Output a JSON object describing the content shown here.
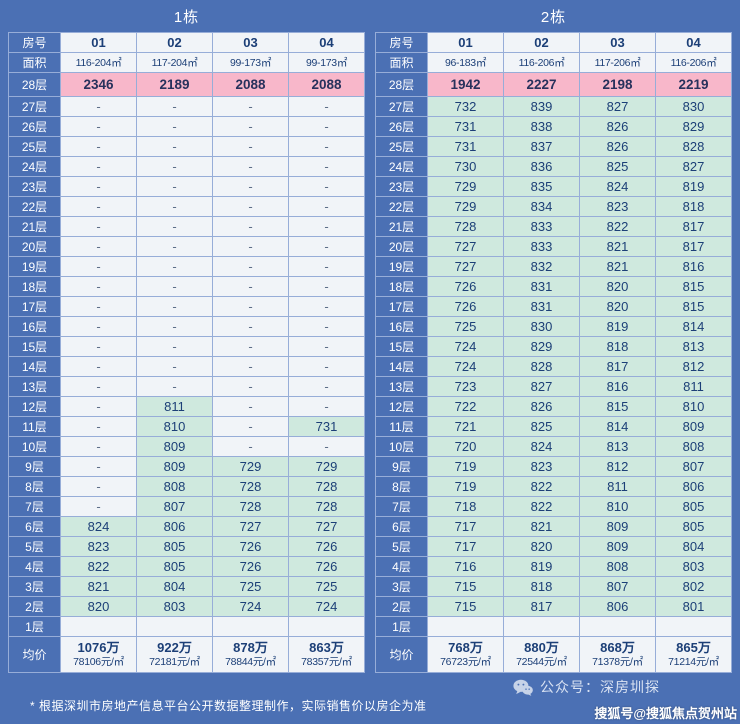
{
  "page": {
    "footnote": "* 根据深圳市房地产信息平台公开数据整理制作，实际销售价以房企为准",
    "wechat_account": "公众号：深房圳探",
    "sohu_watermark": "搜狐号@搜狐焦点贺州站"
  },
  "colors": {
    "bg": "#4b70b4",
    "border": "#97add8",
    "pink": "#f8b7ca",
    "mint": "#cfe9de",
    "lightcell": "#f1f4f8",
    "celltext": "#1c3f77",
    "headertext": "#ffffff"
  },
  "chart_data": [
    {
      "type": "table",
      "title": "1栋",
      "row_label_header": "房号",
      "area_row_label": "面积",
      "avg_row_label": "均价",
      "columns": [
        "01",
        "02",
        "03",
        "04"
      ],
      "areas": [
        "116-204㎡",
        "117-204㎡",
        "99-173㎡",
        "99-173㎡"
      ],
      "floors": [
        "28层",
        "27层",
        "26层",
        "25层",
        "24层",
        "23层",
        "22层",
        "21层",
        "20层",
        "19层",
        "18层",
        "17层",
        "16层",
        "15层",
        "14层",
        "13层",
        "12层",
        "11层",
        "10层",
        "9层",
        "8层",
        "7层",
        "6层",
        "5层",
        "4层",
        "3层",
        "2层",
        "1层"
      ],
      "rows": [
        [
          "2346",
          "2189",
          "2088",
          "2088"
        ],
        [
          "-",
          "-",
          "-",
          "-"
        ],
        [
          "-",
          "-",
          "-",
          "-"
        ],
        [
          "-",
          "-",
          "-",
          "-"
        ],
        [
          "-",
          "-",
          "-",
          "-"
        ],
        [
          "-",
          "-",
          "-",
          "-"
        ],
        [
          "-",
          "-",
          "-",
          "-"
        ],
        [
          "-",
          "-",
          "-",
          "-"
        ],
        [
          "-",
          "-",
          "-",
          "-"
        ],
        [
          "-",
          "-",
          "-",
          "-"
        ],
        [
          "-",
          "-",
          "-",
          "-"
        ],
        [
          "-",
          "-",
          "-",
          "-"
        ],
        [
          "-",
          "-",
          "-",
          "-"
        ],
        [
          "-",
          "-",
          "-",
          "-"
        ],
        [
          "-",
          "-",
          "-",
          "-"
        ],
        [
          "-",
          "-",
          "-",
          "-"
        ],
        [
          "-",
          "811",
          "-",
          "-"
        ],
        [
          "-",
          "810",
          "-",
          "731"
        ],
        [
          "-",
          "809",
          "-",
          "-"
        ],
        [
          "-",
          "809",
          "729",
          "729"
        ],
        [
          "-",
          "808",
          "728",
          "728"
        ],
        [
          "-",
          "807",
          "728",
          "728"
        ],
        [
          "824",
          "806",
          "727",
          "727"
        ],
        [
          "823",
          "805",
          "726",
          "726"
        ],
        [
          "822",
          "805",
          "726",
          "726"
        ],
        [
          "821",
          "804",
          "725",
          "725"
        ],
        [
          "820",
          "803",
          "724",
          "724"
        ],
        [
          "",
          "",
          "",
          ""
        ]
      ],
      "averages": [
        {
          "total": "1076万",
          "unit": "78106元/㎡"
        },
        {
          "total": "922万",
          "unit": "72181元/㎡"
        },
        {
          "total": "878万",
          "unit": "78844元/㎡"
        },
        {
          "total": "863万",
          "unit": "78357元/㎡"
        }
      ]
    },
    {
      "type": "table",
      "title": "2栋",
      "row_label_header": "房号",
      "area_row_label": "面积",
      "avg_row_label": "均价",
      "columns": [
        "01",
        "02",
        "03",
        "04"
      ],
      "areas": [
        "96-183㎡",
        "116-206㎡",
        "117-206㎡",
        "116-206㎡"
      ],
      "floors": [
        "28层",
        "27层",
        "26层",
        "25层",
        "24层",
        "23层",
        "22层",
        "21层",
        "20层",
        "19层",
        "18层",
        "17层",
        "16层",
        "15层",
        "14层",
        "13层",
        "12层",
        "11层",
        "10层",
        "9层",
        "8层",
        "7层",
        "6层",
        "5层",
        "4层",
        "3层",
        "2层",
        "1层"
      ],
      "rows": [
        [
          "1942",
          "2227",
          "2198",
          "2219"
        ],
        [
          "732",
          "839",
          "827",
          "830"
        ],
        [
          "731",
          "838",
          "826",
          "829"
        ],
        [
          "731",
          "837",
          "826",
          "828"
        ],
        [
          "730",
          "836",
          "825",
          "827"
        ],
        [
          "729",
          "835",
          "824",
          "819"
        ],
        [
          "729",
          "834",
          "823",
          "818"
        ],
        [
          "728",
          "833",
          "822",
          "817"
        ],
        [
          "727",
          "833",
          "821",
          "817"
        ],
        [
          "727",
          "832",
          "821",
          "816"
        ],
        [
          "726",
          "831",
          "820",
          "815"
        ],
        [
          "726",
          "831",
          "820",
          "815"
        ],
        [
          "725",
          "830",
          "819",
          "814"
        ],
        [
          "724",
          "829",
          "818",
          "813"
        ],
        [
          "724",
          "828",
          "817",
          "812"
        ],
        [
          "723",
          "827",
          "816",
          "811"
        ],
        [
          "722",
          "826",
          "815",
          "810"
        ],
        [
          "721",
          "825",
          "814",
          "809"
        ],
        [
          "720",
          "824",
          "813",
          "808"
        ],
        [
          "719",
          "823",
          "812",
          "807"
        ],
        [
          "719",
          "822",
          "811",
          "806"
        ],
        [
          "718",
          "822",
          "810",
          "805"
        ],
        [
          "717",
          "821",
          "809",
          "805"
        ],
        [
          "717",
          "820",
          "809",
          "804"
        ],
        [
          "716",
          "819",
          "808",
          "803"
        ],
        [
          "715",
          "818",
          "807",
          "802"
        ],
        [
          "715",
          "817",
          "806",
          "801"
        ],
        [
          "",
          "",
          "",
          ""
        ]
      ],
      "averages": [
        {
          "total": "768万",
          "unit": "76723元/㎡"
        },
        {
          "total": "880万",
          "unit": "72544元/㎡"
        },
        {
          "total": "868万",
          "unit": "71378元/㎡"
        },
        {
          "total": "865万",
          "unit": "71214元/㎡"
        }
      ]
    }
  ]
}
